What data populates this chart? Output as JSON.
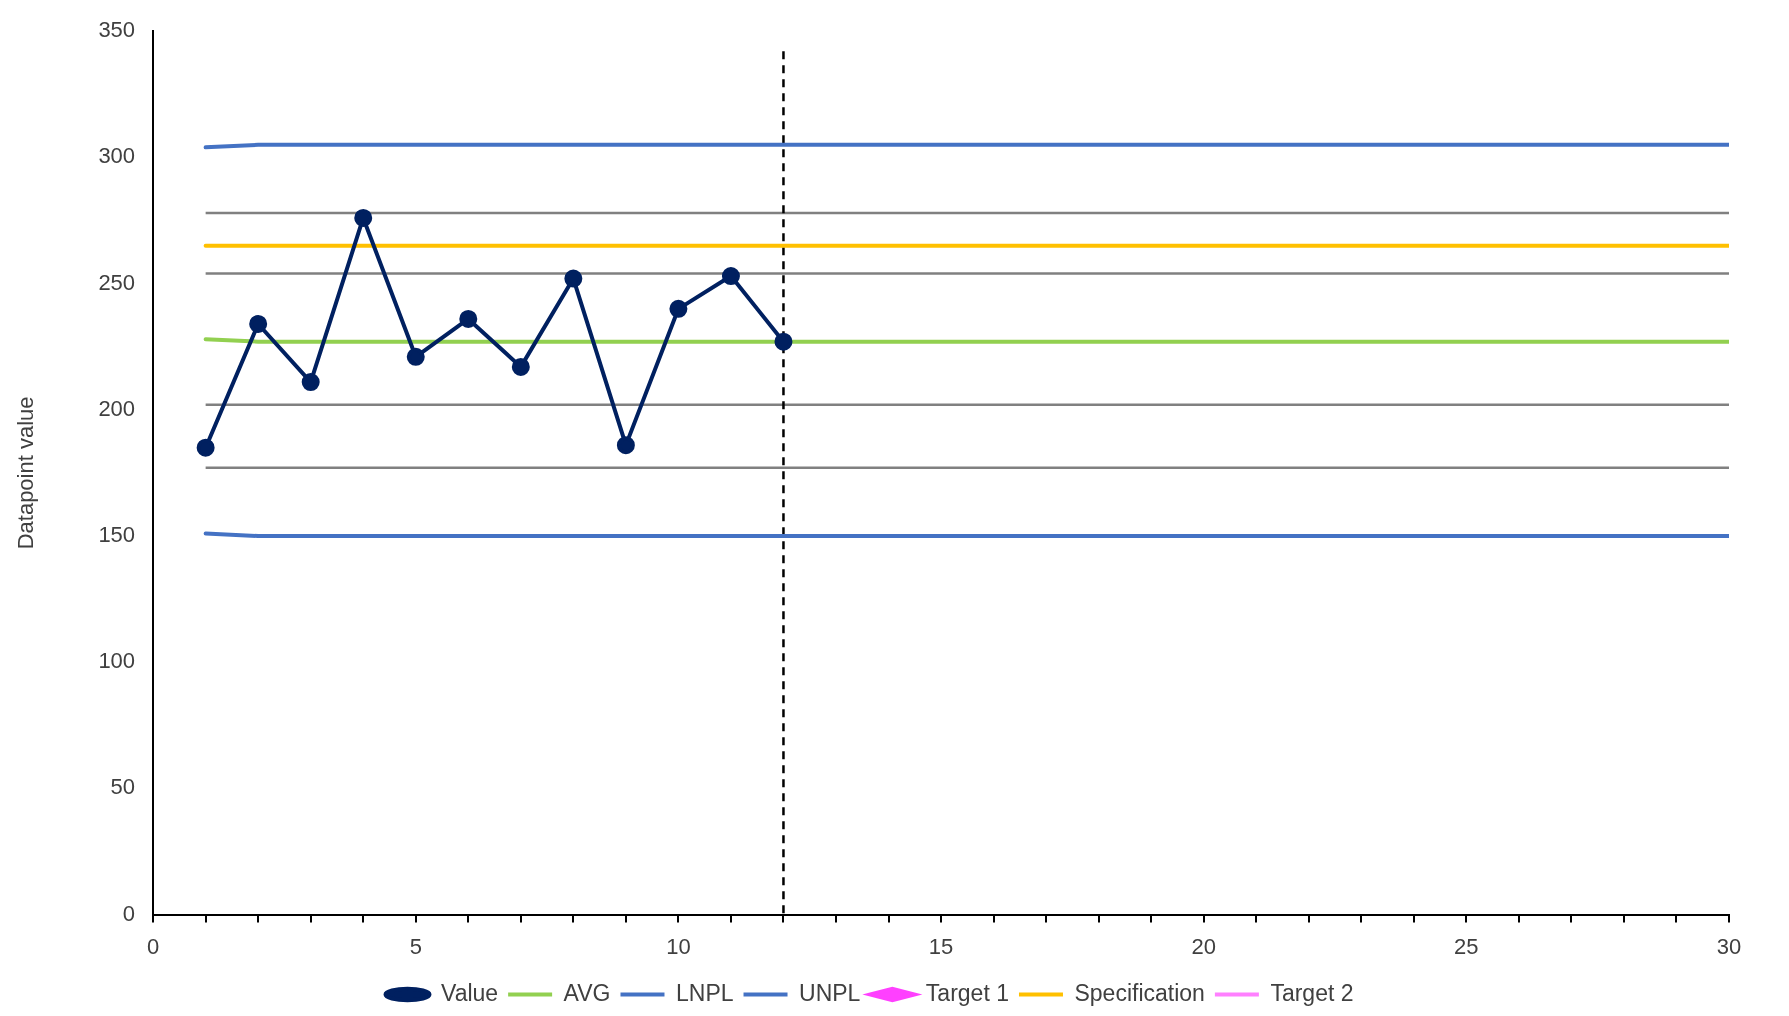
{
  "chart_data": {
    "type": "line",
    "ylabel": "Datapoint value",
    "x": [
      1,
      2,
      3,
      4,
      5,
      6,
      7,
      8,
      9,
      10,
      11,
      12,
      13,
      14,
      15,
      16,
      17,
      18,
      19,
      20,
      21,
      22,
      23,
      24,
      25,
      26,
      27,
      28,
      29,
      30
    ],
    "series": [
      {
        "name": "Value",
        "color": "#002060",
        "marker": "circle",
        "values": [
          185,
          234,
          211,
          276,
          221,
          236,
          217,
          252,
          186,
          240,
          253,
          227,
          null,
          null,
          null,
          null,
          null,
          null,
          null,
          null,
          null,
          null,
          null,
          null,
          null,
          null,
          null,
          null,
          null,
          null
        ]
      },
      {
        "name": "AVG",
        "color": "#92d050",
        "marker": "none",
        "values": [
          228,
          227,
          227,
          227,
          227,
          227,
          227,
          227,
          227,
          227,
          227,
          227,
          227,
          227,
          227,
          227,
          227,
          227,
          227,
          227,
          227,
          227,
          227,
          227,
          227,
          227,
          227,
          227,
          227,
          227
        ]
      },
      {
        "name": "LNPL",
        "color": "#4472c4",
        "marker": "none",
        "values": [
          151,
          150,
          150,
          150,
          150,
          150,
          150,
          150,
          150,
          150,
          150,
          150,
          150,
          150,
          150,
          150,
          150,
          150,
          150,
          150,
          150,
          150,
          150,
          150,
          150,
          150,
          150,
          150,
          150,
          150
        ]
      },
      {
        "name": "UNPL",
        "color": "#4472c4",
        "marker": "none",
        "values": [
          304,
          305,
          305,
          305,
          305,
          305,
          305,
          305,
          305,
          305,
          305,
          305,
          305,
          305,
          305,
          305,
          305,
          305,
          305,
          305,
          305,
          305,
          305,
          305,
          305,
          305,
          305,
          305,
          305,
          305
        ]
      },
      {
        "name": "Target 1",
        "type": "scatter",
        "color": "#ff40ff",
        "marker": "diamond",
        "values": [
          null,
          null,
          null,
          null,
          null,
          null,
          null,
          null,
          null,
          null,
          null,
          null,
          null,
          null,
          null,
          null,
          null,
          null,
          null,
          null,
          null,
          null,
          null,
          null,
          null,
          null,
          null,
          null,
          null,
          null
        ]
      },
      {
        "name": "Specification",
        "color": "#ffc000",
        "marker": "none",
        "values": [
          265,
          265,
          265,
          265,
          265,
          265,
          265,
          265,
          265,
          265,
          265,
          265,
          265,
          265,
          265,
          265,
          265,
          265,
          265,
          265,
          265,
          265,
          265,
          265,
          265,
          265,
          265,
          265,
          265,
          265
        ]
      },
      {
        "name": "Target 2",
        "color": "#ff80ff",
        "marker": "none",
        "values": [
          null,
          null,
          null,
          null,
          null,
          null,
          null,
          null,
          null,
          null,
          null,
          null,
          null,
          null,
          null,
          null,
          null,
          null,
          null,
          null,
          null,
          null,
          null,
          null,
          null,
          null,
          null,
          null,
          null,
          null
        ]
      }
    ],
    "ref_lines": [
      {
        "axis": "y",
        "value": 278,
        "color": "#808080"
      },
      {
        "axis": "y",
        "value": 254,
        "color": "#808080"
      },
      {
        "axis": "y",
        "value": 202,
        "color": "#808080"
      },
      {
        "axis": "y",
        "value": 177,
        "color": "#808080"
      },
      {
        "axis": "x",
        "value": 12,
        "color": "#000000",
        "line_style": "dashed"
      }
    ],
    "xlim": [
      0,
      30
    ],
    "xticks": [
      0,
      {
        "value": 1,
        "label": null
      },
      {
        "value": 2,
        "label": null
      },
      {
        "value": 3,
        "label": null
      },
      {
        "value": 4,
        "label": null
      },
      5,
      {
        "value": 6,
        "label": null
      },
      {
        "value": 7,
        "label": null
      },
      {
        "value": 8,
        "label": null
      },
      {
        "value": 9,
        "label": null
      },
      10,
      {
        "value": 11,
        "label": null
      },
      {
        "value": 12,
        "label": null
      },
      {
        "value": 13,
        "label": null
      },
      {
        "value": 14,
        "label": null
      },
      15,
      {
        "value": 16,
        "label": null
      },
      {
        "value": 17,
        "label": null
      },
      {
        "value": 18,
        "label": null
      },
      {
        "value": 19,
        "label": null
      },
      20,
      {
        "value": 21,
        "label": null
      },
      {
        "value": 22,
        "label": null
      },
      {
        "value": 23,
        "label": null
      },
      {
        "value": 24,
        "label": null
      },
      25,
      {
        "value": 26,
        "label": null
      },
      {
        "value": 27,
        "label": null
      },
      {
        "value": 28,
        "label": null
      },
      {
        "value": 29,
        "label": null
      },
      30
    ],
    "ylim": [
      0,
      350
    ],
    "yticks": [
      0,
      50,
      100,
      150,
      200,
      250,
      300,
      350
    ],
    "grid": false,
    "legend": "bottom"
  }
}
